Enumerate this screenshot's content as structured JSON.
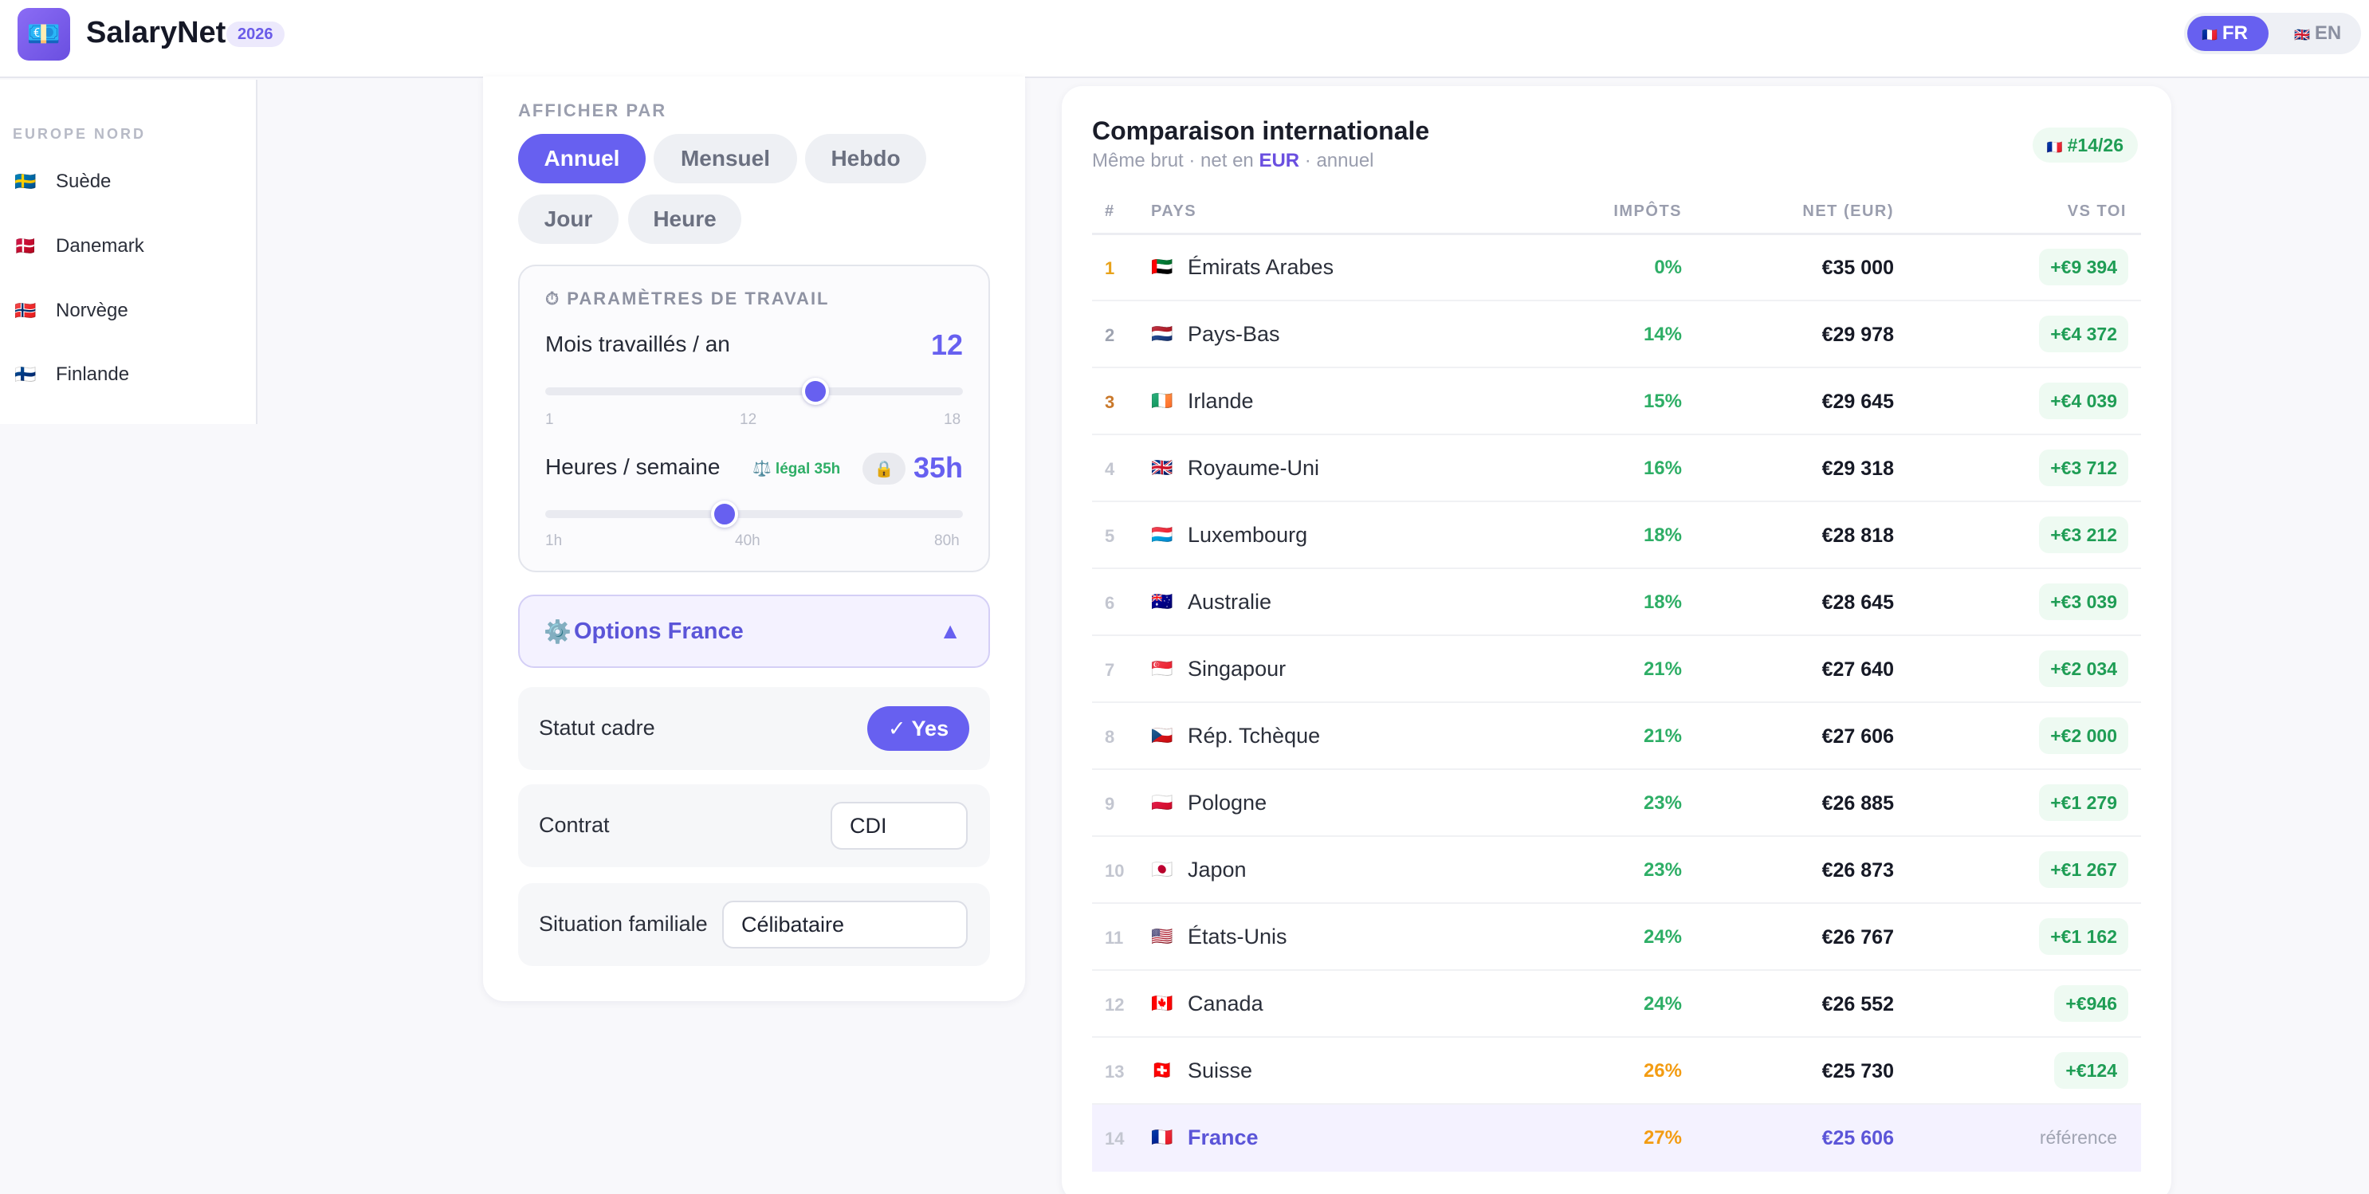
{
  "header": {
    "logo_glyph": "💶",
    "brand": "SalaryNet",
    "year": "2026",
    "lang": [
      {
        "flag": "🇫🇷",
        "label": "FR",
        "active": true
      },
      {
        "flag": "🇬🇧",
        "label": "EN",
        "active": false
      }
    ]
  },
  "sidebar": {
    "region": "EUROPE NORD",
    "countries": [
      {
        "flag": "🇸🇪",
        "name": "Suède"
      },
      {
        "flag": "🇩🇰",
        "name": "Danemark"
      },
      {
        "flag": "🇳🇴",
        "name": "Norvège"
      },
      {
        "flag": "🇫🇮",
        "name": "Finlande"
      }
    ]
  },
  "settings": {
    "display_label": "AFFICHER PAR",
    "periods": [
      {
        "label": "Annuel",
        "active": true
      },
      {
        "label": "Mensuel",
        "active": false
      },
      {
        "label": "Hebdo",
        "active": false
      },
      {
        "label": "Jour",
        "active": false
      },
      {
        "label": "Heure",
        "active": false
      }
    ],
    "work_title": "⏱ PARAMÈTRES DE TRAVAIL",
    "months": {
      "label": "Mois travaillés / an",
      "value": "12",
      "fraction": 0.647,
      "ticks": [
        "1",
        "12",
        "18"
      ]
    },
    "hours": {
      "label": "Heures / semaine",
      "legal": "⚖️ légal 35h",
      "lock_glyph": "🔒",
      "value": "35h",
      "fraction": 0.43,
      "ticks": [
        "1h",
        "40h",
        "80h"
      ]
    },
    "options_gear": "⚙️",
    "options_label": "Options France",
    "options_caret": "▲",
    "cadre": {
      "label": "Statut cadre",
      "value": "✓ Yes"
    },
    "contrat": {
      "label": "Contrat",
      "value": "CDI"
    },
    "famille": {
      "label": "Situation familiale",
      "value": "Célibataire"
    }
  },
  "comparison": {
    "title": "Comparaison internationale",
    "subtitle_pre": "Même brut · net en ",
    "currency": "EUR",
    "subtitle_post": " · annuel",
    "rank_flag": "🇫🇷",
    "rank": "#14/26",
    "columns": {
      "rank": "#",
      "country": "PAYS",
      "tax": "IMPÔTS",
      "net": "NET (EUR)",
      "diff": "VS TOI"
    },
    "tax_colors": {
      "green": "#2eae66",
      "orange": "#f39c12"
    },
    "rows": [
      {
        "rank": "1",
        "flag": "🇦🇪",
        "name": "Émirats Arabes",
        "tax": "0%",
        "net": "€35 000",
        "diff": "+€9 394"
      },
      {
        "rank": "2",
        "flag": "🇳🇱",
        "name": "Pays-Bas",
        "tax": "14%",
        "net": "€29 978",
        "diff": "+€4 372"
      },
      {
        "rank": "3",
        "flag": "🇮🇪",
        "name": "Irlande",
        "tax": "15%",
        "net": "€29 645",
        "diff": "+€4 039"
      },
      {
        "rank": "4",
        "flag": "🇬🇧",
        "name": "Royaume-Uni",
        "tax": "16%",
        "net": "€29 318",
        "diff": "+€3 712"
      },
      {
        "rank": "5",
        "flag": "🇱🇺",
        "name": "Luxembourg",
        "tax": "18%",
        "net": "€28 818",
        "diff": "+€3 212"
      },
      {
        "rank": "6",
        "flag": "🇦🇺",
        "name": "Australie",
        "tax": "18%",
        "net": "€28 645",
        "diff": "+€3 039"
      },
      {
        "rank": "7",
        "flag": "🇸🇬",
        "name": "Singapour",
        "tax": "21%",
        "net": "€27 640",
        "diff": "+€2 034"
      },
      {
        "rank": "8",
        "flag": "🇨🇿",
        "name": "Rép. Tchèque",
        "tax": "21%",
        "net": "€27 606",
        "diff": "+€2 000"
      },
      {
        "rank": "9",
        "flag": "🇵🇱",
        "name": "Pologne",
        "tax": "23%",
        "net": "€26 885",
        "diff": "+€1 279"
      },
      {
        "rank": "10",
        "flag": "🇯🇵",
        "name": "Japon",
        "tax": "23%",
        "net": "€26 873",
        "diff": "+€1 267"
      },
      {
        "rank": "11",
        "flag": "🇺🇸",
        "name": "États-Unis",
        "tax": "24%",
        "net": "€26 767",
        "diff": "+€1 162"
      },
      {
        "rank": "12",
        "flag": "🇨🇦",
        "name": "Canada",
        "tax": "24%",
        "net": "€26 552",
        "diff": "+€946"
      },
      {
        "rank": "13",
        "flag": "🇨🇭",
        "name": "Suisse",
        "tax": "26%",
        "net": "€25 730",
        "diff": "+€124"
      },
      {
        "rank": "14",
        "flag": "🇫🇷",
        "name": "France",
        "tax": "27%",
        "net": "€25 606",
        "diff": "référence"
      }
    ]
  }
}
